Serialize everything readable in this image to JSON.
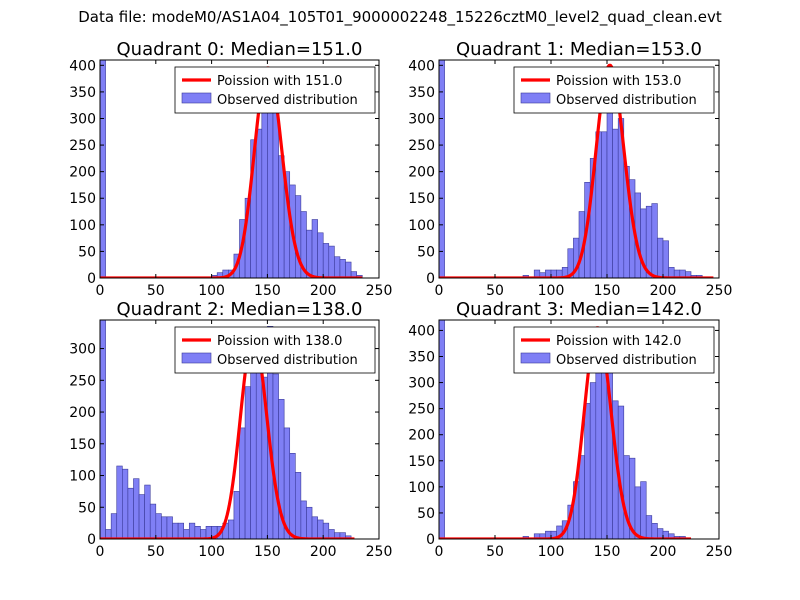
{
  "figure": {
    "title": "Data file: modeM0/AS1A04_105T01_9000002248_15226cztM0_level2_quad_clean.evt"
  },
  "colors": {
    "bar_fill": "#7f7ff5",
    "bar_edge": "#3a3a9a",
    "curve": "#ff0000",
    "axis": "#000000"
  },
  "chart_data": [
    {
      "type": "bar",
      "title": "Quadrant 0: Median=151.0",
      "xlim": [
        0,
        250
      ],
      "ylim": [
        0,
        410
      ],
      "xticks": [
        0,
        50,
        100,
        150,
        200,
        250
      ],
      "yticks": [
        0,
        50,
        100,
        150,
        200,
        250,
        300,
        350,
        400
      ],
      "bin_width": 5,
      "bin_starts": [
        0,
        100,
        105,
        110,
        115,
        120,
        125,
        130,
        135,
        140,
        145,
        150,
        155,
        160,
        165,
        170,
        175,
        180,
        185,
        190,
        195,
        200,
        205,
        210,
        215,
        220,
        225,
        230
      ],
      "values": [
        410,
        5,
        10,
        15,
        15,
        45,
        110,
        150,
        260,
        280,
        330,
        395,
        375,
        230,
        200,
        175,
        155,
        125,
        90,
        110,
        85,
        65,
        60,
        40,
        35,
        30,
        12,
        5
      ],
      "legend": {
        "curve_label": "Poission with 151.0",
        "bars_label": "Observed distribution"
      },
      "curve": {
        "mean": 151.0,
        "peak": 395,
        "x_range": [
          0,
          235
        ]
      }
    },
    {
      "type": "bar",
      "title": "Quadrant 1: Median=153.0",
      "xlim": [
        0,
        250
      ],
      "ylim": [
        0,
        410
      ],
      "xticks": [
        0,
        50,
        100,
        150,
        200,
        250
      ],
      "yticks": [
        0,
        50,
        100,
        150,
        200,
        250,
        300,
        350,
        400
      ],
      "bin_width": 5,
      "bin_starts": [
        0,
        75,
        85,
        90,
        95,
        100,
        105,
        110,
        115,
        120,
        125,
        130,
        135,
        140,
        145,
        150,
        155,
        160,
        165,
        170,
        175,
        180,
        185,
        190,
        195,
        200,
        205,
        210,
        215,
        220,
        225,
        230
      ],
      "values": [
        410,
        5,
        15,
        10,
        15,
        15,
        15,
        20,
        55,
        75,
        125,
        180,
        225,
        275,
        275,
        320,
        280,
        300,
        210,
        185,
        160,
        130,
        135,
        140,
        75,
        70,
        20,
        15,
        15,
        12,
        5,
        5
      ],
      "legend": {
        "curve_label": "Poission with 153.0",
        "bars_label": "Observed distribution"
      },
      "curve": {
        "mean": 153.0,
        "peak": 400,
        "x_range": [
          0,
          245
        ]
      }
    },
    {
      "type": "bar",
      "title": "Quadrant 2: Median=138.0",
      "xlim": [
        0,
        250
      ],
      "ylim": [
        0,
        345
      ],
      "xticks": [
        0,
        50,
        100,
        150,
        200,
        250
      ],
      "yticks": [
        0,
        50,
        100,
        150,
        200,
        250,
        300
      ],
      "bin_width": 5,
      "bin_starts": [
        0,
        5,
        10,
        15,
        20,
        25,
        30,
        35,
        40,
        45,
        50,
        55,
        60,
        65,
        70,
        75,
        80,
        85,
        90,
        95,
        100,
        105,
        110,
        115,
        120,
        125,
        130,
        135,
        140,
        145,
        150,
        155,
        160,
        165,
        170,
        175,
        180,
        185,
        190,
        195,
        200,
        205,
        210,
        215,
        220
      ],
      "values": [
        345,
        15,
        40,
        115,
        110,
        80,
        95,
        70,
        85,
        55,
        40,
        35,
        35,
        25,
        25,
        15,
        25,
        20,
        15,
        20,
        20,
        20,
        25,
        30,
        75,
        175,
        240,
        270,
        290,
        255,
        335,
        260,
        220,
        175,
        135,
        105,
        60,
        50,
        35,
        30,
        25,
        15,
        10,
        10,
        5
      ],
      "legend": {
        "curve_label": "Poission with 138.0",
        "bars_label": "Observed distribution"
      },
      "curve": {
        "mean": 138.0,
        "peak": 320,
        "x_range": [
          0,
          228
        ]
      }
    },
    {
      "type": "bar",
      "title": "Quadrant 3: Median=142.0",
      "xlim": [
        0,
        250
      ],
      "ylim": [
        0,
        420
      ],
      "xticks": [
        0,
        50,
        100,
        150,
        200,
        250
      ],
      "yticks": [
        0,
        50,
        100,
        150,
        200,
        250,
        300,
        350,
        400
      ],
      "bin_width": 5,
      "bin_starts": [
        0,
        75,
        85,
        90,
        95,
        100,
        105,
        110,
        115,
        120,
        125,
        130,
        135,
        140,
        145,
        150,
        155,
        160,
        165,
        170,
        175,
        180,
        185,
        190,
        195,
        200,
        205,
        210,
        215
      ],
      "values": [
        420,
        5,
        10,
        10,
        15,
        15,
        25,
        35,
        65,
        110,
        160,
        260,
        300,
        375,
        370,
        330,
        265,
        255,
        160,
        155,
        100,
        110,
        45,
        30,
        20,
        15,
        10,
        5,
        5
      ],
      "legend": {
        "curve_label": "Poission with 142.0",
        "bars_label": "Observed distribution"
      },
      "curve": {
        "mean": 142.0,
        "peak": 405,
        "x_range": [
          0,
          225
        ]
      }
    }
  ]
}
